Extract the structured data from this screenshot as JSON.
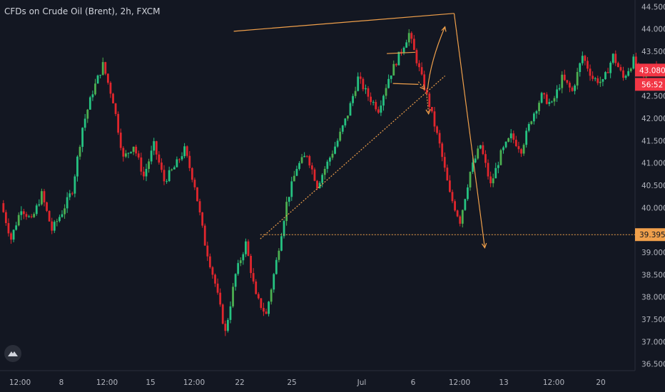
{
  "title": "CFDs on Crude Oil (Brent), 2h, FXCM",
  "colors": {
    "background": "#131722",
    "up": "#26c281",
    "up_alt": "#4caf50",
    "down": "#e0262d",
    "drawing": "#f0a04b",
    "axis_text": "#b2b5be",
    "price_label_bg": "#f23645",
    "target_label_bg": "#f0a04b"
  },
  "icons": [
    "tradingview-logo-icon"
  ],
  "chart_data": {
    "type": "candlestick",
    "title": "CFDs on Crude Oil (Brent), 2h, FXCM",
    "x_tick_labels": [
      "12:00",
      "8",
      "12:00",
      "15",
      "12:00",
      "22",
      "25",
      "Jul",
      "6",
      "12:00",
      "13",
      "12:00",
      "20"
    ],
    "y_tick_labels": [
      "44.500",
      "44.000",
      "43.500",
      "42.500",
      "42.000",
      "41.500",
      "41.000",
      "40.500",
      "40.000",
      "39.000",
      "38.500",
      "38.000",
      "37.500",
      "37.000",
      "36.500"
    ],
    "ylim": [
      36.35,
      44.65
    ],
    "current_price": "43.080",
    "countdown": "56:52",
    "target_price": "39.395",
    "price_path": [
      40.1,
      39.3,
      40.0,
      39.7,
      40.3,
      39.5,
      39.9,
      40.4,
      41.8,
      42.6,
      43.2,
      42.4,
      41.1,
      41.4,
      40.7,
      41.4,
      40.6,
      40.9,
      41.3,
      40.5,
      39.2,
      38.3,
      37.2,
      38.5,
      39.2,
      38.0,
      37.6,
      38.8,
      40.1,
      40.9,
      41.2,
      40.5,
      41.0,
      41.5,
      42.1,
      42.9,
      42.5,
      42.2,
      42.9,
      43.4,
      43.9,
      43.1,
      42.3,
      41.4,
      40.3,
      39.7,
      40.8,
      41.4,
      40.5,
      41.2,
      41.6,
      41.3,
      42.0,
      42.5,
      42.3,
      42.9,
      42.6,
      43.4,
      42.9,
      42.8,
      43.4,
      42.9,
      43.3,
      42.9,
      43.2,
      43.08
    ],
    "drawings": [
      {
        "kind": "wedge-top",
        "from": {
          "x_index": 22.7,
          "y": 43.95
        },
        "to": {
          "x_index": 44.3,
          "y": 44.35
        }
      },
      {
        "kind": "drop-arrow",
        "from": {
          "x_index": 44.3,
          "y": 44.35
        },
        "to": {
          "x_index": 47.3,
          "y": 39.1
        }
      },
      {
        "kind": "rising-support",
        "style": "dotted",
        "from": {
          "x_index": 25.3,
          "y": 39.3
        },
        "to": {
          "x_index": 43.4,
          "y": 42.95
        }
      },
      {
        "kind": "horizontal-level",
        "style": "dotted",
        "y": 39.395
      },
      {
        "kind": "flag-top",
        "from": {
          "x_index": 37.7,
          "y": 43.45
        },
        "to": {
          "x_index": 40.5,
          "y": 43.48
        }
      },
      {
        "kind": "flag-bottom",
        "from": {
          "x_index": 38.3,
          "y": 42.78
        },
        "to": {
          "x_index": 40.8,
          "y": 42.76
        }
      },
      {
        "kind": "breakout-arrow",
        "from": {
          "x_index": 41.7,
          "y": 42.65
        },
        "to": {
          "x_index": 43.4,
          "y": 44.05
        }
      },
      {
        "kind": "dip-arrow",
        "style": "dotted",
        "from": {
          "x_index": 40.8,
          "y": 42.82
        },
        "to": {
          "x_index": 41.4,
          "y": 42.65
        }
      },
      {
        "kind": "dip-arrow-2",
        "style": "dotted",
        "from": {
          "x_index": 41.6,
          "y": 42.55
        },
        "to": {
          "x_index": 41.8,
          "y": 42.1
        }
      }
    ]
  }
}
